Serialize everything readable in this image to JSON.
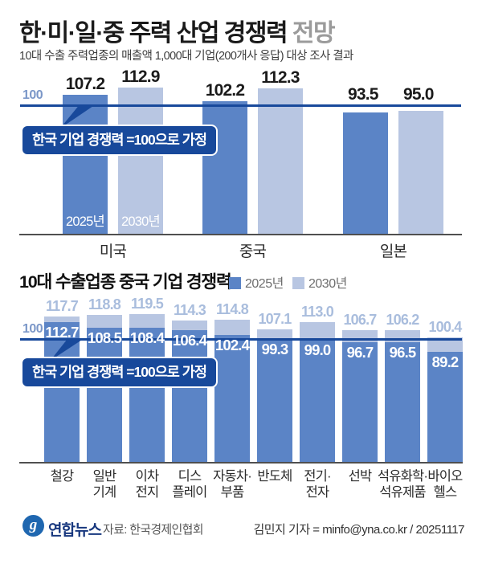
{
  "header": {
    "title": "한·미·일·중 주력 산업 경쟁력",
    "title_suffix": " 전망",
    "subtitle": "10대 수출 주력업종의 매출액 1,000대 기업(200개사 응답) 대상 조사 결과"
  },
  "colors": {
    "year2025_bar": "#5b84c6",
    "year2030_bar": "#b8c6e2",
    "baseline_navy": "#18499b",
    "hundred_label": "#7b97c8",
    "light_value_label": "#a9bddd"
  },
  "chart_data": [
    {
      "type": "bar",
      "title": "",
      "baseline_label": "100",
      "baseline_value": 100,
      "callout": "한국 기업 경쟁력 =100으로 가정",
      "categories": [
        "미국",
        "중국",
        "일본"
      ],
      "series": [
        {
          "name": "2025년",
          "values": [
            107.2,
            102.2,
            93.5
          ]
        },
        {
          "name": "2030년",
          "values": [
            112.9,
            112.3,
            95.0
          ]
        }
      ],
      "bar_year_labels": [
        "2025년",
        "2030년"
      ],
      "note": "values indexed to Korea = 100"
    },
    {
      "type": "bar",
      "title": "10대 수출업종 중국 기업 경쟁력",
      "legend": [
        "2025년",
        "2030년"
      ],
      "baseline_label": "100",
      "baseline_value": 100,
      "callout": "한국 기업 경쟁력 =100으로 가정",
      "categories": [
        [
          "철강"
        ],
        [
          "일반",
          "기계"
        ],
        [
          "이차",
          "전지"
        ],
        [
          "디스",
          "플레이"
        ],
        [
          "자동차·",
          "부품"
        ],
        [
          "반도체"
        ],
        [
          "전기·",
          "전자"
        ],
        [
          "선박"
        ],
        [
          "석유화학·",
          "석유제품"
        ],
        [
          "바이오",
          "헬스"
        ]
      ],
      "series": [
        {
          "name": "2025년",
          "values": [
            112.7,
            108.5,
            108.4,
            106.4,
            102.4,
            99.3,
            99.0,
            96.7,
            96.5,
            89.2
          ]
        },
        {
          "name": "2030년",
          "values": [
            117.7,
            118.8,
            119.5,
            114.3,
            114.8,
            107.1,
            113.0,
            106.7,
            106.2,
            100.4
          ]
        }
      ],
      "note": "values indexed to Korea = 100"
    }
  ],
  "footer": {
    "logo_glyph": "g",
    "logo_text": "연합뉴스",
    "source": "자료: 한국경제인협회",
    "credit": "김민지 기자 = minfo@yna.co.kr / 20251117"
  }
}
